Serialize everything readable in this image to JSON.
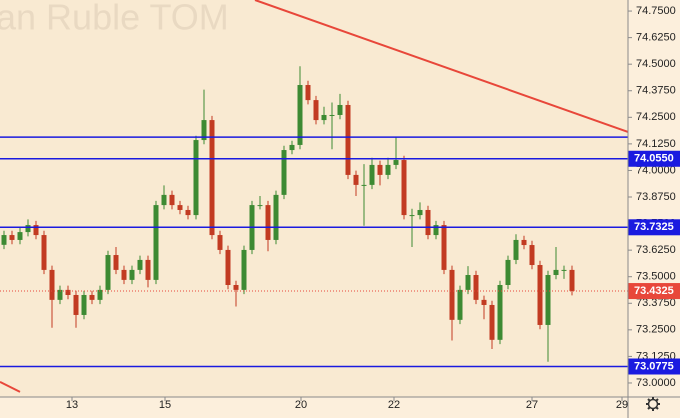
{
  "chart_data": {
    "type": "candlestick",
    "watermark": "an Ruble TOM",
    "open": [
      73.65,
      73.696,
      73.673,
      73.71,
      73.743,
      73.696,
      73.532,
      73.391,
      73.438,
      73.414,
      73.32,
      73.414,
      73.391,
      73.438,
      73.602,
      73.532,
      73.485,
      73.532,
      73.579,
      73.485,
      73.837,
      73.885,
      73.837,
      73.814,
      73.79,
      74.143,
      74.237,
      73.696,
      73.626,
      73.461,
      73.438,
      73.626,
      73.837,
      73.837,
      73.673,
      73.885,
      74.096,
      74.12,
      74.402,
      74.331,
      74.237,
      74.261,
      74.261,
      74.308,
      73.979,
      73.932,
      73.932,
      74.026,
      73.979,
      74.026,
      74.049,
      73.79,
      73.79,
      73.814,
      73.696,
      73.743,
      73.532,
      73.297,
      73.438,
      73.508,
      73.391,
      73.367,
      73.203,
      73.461,
      73.579,
      73.673,
      73.649,
      73.555,
      73.273,
      73.508,
      73.532,
      73.532
    ],
    "high": [
      73.716,
      73.716,
      73.73,
      73.77,
      73.763,
      73.716,
      73.552,
      73.458,
      73.458,
      73.434,
      73.434,
      73.434,
      73.458,
      73.622,
      73.64,
      73.552,
      73.552,
      73.599,
      73.599,
      73.857,
      73.93,
      73.905,
      73.857,
      73.834,
      74.163,
      74.38,
      74.257,
      73.716,
      73.646,
      73.481,
      73.646,
      73.857,
      73.88,
      73.857,
      73.905,
      74.116,
      74.14,
      74.49,
      74.422,
      74.351,
      74.3,
      74.32,
      74.36,
      74.328,
      73.999,
      74.03,
      74.06,
      74.046,
      74.06,
      74.16,
      74.069,
      73.82,
      73.85,
      73.834,
      73.763,
      73.763,
      73.552,
      73.458,
      73.55,
      73.528,
      73.411,
      73.387,
      73.481,
      73.599,
      73.7,
      73.693,
      73.669,
      73.575,
      73.528,
      73.64,
      73.552,
      73.552
    ],
    "low": [
      73.63,
      73.653,
      73.653,
      73.69,
      73.676,
      73.512,
      73.26,
      73.371,
      73.394,
      73.26,
      73.3,
      73.371,
      73.371,
      73.418,
      73.512,
      73.465,
      73.465,
      73.512,
      73.45,
      73.465,
      73.817,
      73.817,
      73.794,
      73.77,
      73.77,
      74.123,
      73.676,
      73.606,
      73.441,
      73.36,
      73.418,
      73.606,
      73.817,
      73.62,
      73.653,
      73.865,
      74.076,
      74.1,
      74.311,
      74.217,
      74.217,
      74.1,
      74.241,
      73.959,
      73.88,
      73.74,
      73.912,
      73.93,
      73.959,
      74.006,
      73.77,
      73.64,
      73.77,
      73.676,
      73.676,
      73.512,
      73.2,
      73.277,
      73.418,
      73.371,
      73.3,
      73.16,
      73.183,
      73.441,
      73.559,
      73.629,
      73.535,
      73.253,
      73.1,
      73.488,
      73.49,
      73.412
    ],
    "close": [
      73.696,
      73.673,
      73.71,
      73.743,
      73.696,
      73.532,
      73.391,
      73.438,
      73.414,
      73.32,
      73.414,
      73.391,
      73.438,
      73.602,
      73.532,
      73.485,
      73.532,
      73.579,
      73.485,
      73.837,
      73.885,
      73.837,
      73.814,
      73.79,
      74.143,
      74.237,
      73.696,
      73.626,
      73.461,
      73.438,
      73.626,
      73.837,
      73.837,
      73.673,
      73.885,
      74.096,
      74.12,
      74.402,
      74.331,
      74.237,
      74.261,
      74.261,
      74.308,
      73.979,
      73.932,
      73.932,
      74.026,
      73.979,
      74.026,
      74.049,
      73.79,
      73.79,
      73.814,
      73.696,
      73.743,
      73.532,
      73.297,
      73.438,
      73.508,
      73.391,
      73.367,
      73.203,
      73.461,
      73.579,
      73.673,
      73.649,
      73.555,
      73.273,
      73.508,
      73.532,
      73.532,
      73.4325
    ],
    "up_color": "#3d8a33",
    "down_color": "#c23b22",
    "xlim": [
      -0.5,
      78
    ],
    "xticks": [
      {
        "value": 8.5,
        "label": "13"
      },
      {
        "value": 20.125,
        "label": "15"
      },
      {
        "value": 37.125,
        "label": "20"
      },
      {
        "value": 48.75,
        "label": "22"
      },
      {
        "value": 66,
        "label": "27"
      },
      {
        "value": 77.25,
        "label": "29"
      }
    ],
    "ylim": [
      72.934,
      74.802
    ],
    "yticks": [
      {
        "value": 74.75,
        "label": "74.7500"
      },
      {
        "value": 74.625,
        "label": "74.6250"
      },
      {
        "value": 74.5,
        "label": "74.5000"
      },
      {
        "value": 74.375,
        "label": "74.3750"
      },
      {
        "value": 74.25,
        "label": "74.2500"
      },
      {
        "value": 74.125,
        "label": "74.1250"
      },
      {
        "value": 74.0,
        "label": "74.0000"
      },
      {
        "value": 73.875,
        "label": "73.8750"
      },
      {
        "value": 73.75,
        "label": "73.7500"
      },
      {
        "value": 73.625,
        "label": "73.6250"
      },
      {
        "value": 73.5,
        "label": "73.5000"
      },
      {
        "value": 73.375,
        "label": "73.3750"
      },
      {
        "value": 73.25,
        "label": "73.2500"
      },
      {
        "value": 73.125,
        "label": "73.1250"
      },
      {
        "value": 73.0,
        "label": "73.0000"
      }
    ],
    "level_color": "#1a1ae0",
    "levels": [
      {
        "value": 74.157
      },
      {
        "value": 74.055,
        "label": "74.0550"
      },
      {
        "value": 73.7325,
        "label": "73.7325"
      },
      {
        "value": 73.0775,
        "label": "73.0775"
      }
    ],
    "last_price": {
      "value": 73.4325,
      "label": "73.4325"
    },
    "last_color": "#e8473a",
    "trend_color": "#e8473a",
    "trendlines": [
      {
        "x": [
          31.375,
          78
        ],
        "y": [
          74.802,
          74.181
        ]
      },
      {
        "x": [
          -0.5,
          2.0
        ],
        "y": [
          73.005,
          72.958
        ]
      }
    ]
  }
}
